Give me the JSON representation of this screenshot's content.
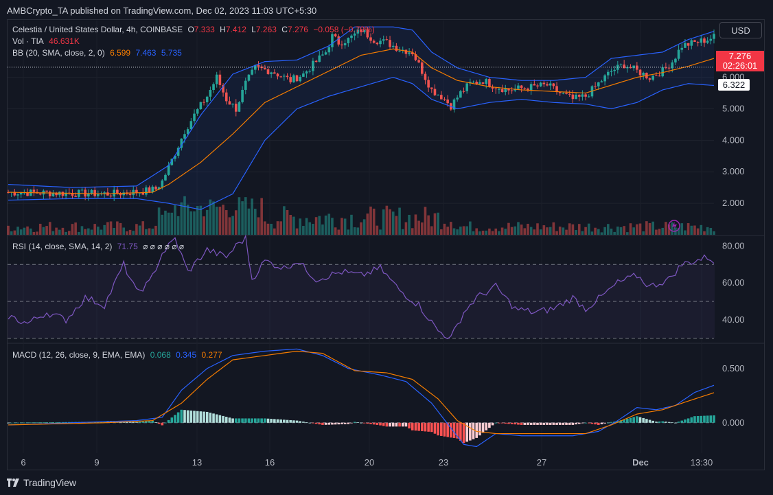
{
  "header": {
    "publisher": "AMBCrypto_TA published on TradingView.com, Dec 02, 2023 11:03 UTC+5:30"
  },
  "currency_button": "USD",
  "legend": {
    "symbol": "Celestia / United States Dollar, 4h, COINBASE",
    "o_label": "O",
    "o": "7.333",
    "h_label": "H",
    "h": "7.412",
    "l_label": "L",
    "l": "7.263",
    "c_label": "C",
    "c": "7.276",
    "change": "−0.058 (−0.79%)",
    "vol_label": "Vol · TIA",
    "vol": "46.631K",
    "bb_label": "BB (20, SMA, close, 2, 0)",
    "bb_basis": "6.599",
    "bb_upper": "7.463",
    "bb_lower": "5.735",
    "rsi_label": "RSI (14, close, SMA, 14, 2)",
    "rsi_value": "71.75",
    "rsi_na": "⌀ ⌀ ⌀ ⌀ ⌀ ⌀",
    "macd_label": "MACD (12, 26, close, 9, EMA, EMA)",
    "macd_hist": "0.068",
    "macd_line": "0.345",
    "macd_signal": "0.277"
  },
  "price_tags": {
    "last": "7.276",
    "countdown": "02:26:01",
    "crosshair": "6.322"
  },
  "footer": {
    "brand": "TradingView"
  },
  "colors": {
    "up": "#26a69a",
    "down": "#ef5350",
    "bb": "#2962ff",
    "basis": "#f57c00",
    "rsi": "#7e57c2"
  },
  "chart_data": [
    {
      "type": "candlestick",
      "title": "Celestia / United States Dollar, 4h, COINBASE",
      "x_ticks": [
        "6",
        "9",
        "13",
        "16",
        "20",
        "23",
        "27",
        "Dec",
        "13:30"
      ],
      "y_ticks": [
        "2.000",
        "3.000",
        "4.000",
        "5.000",
        "6.000"
      ],
      "ylim": [
        1.0,
        7.8
      ],
      "close_path": [
        [
          0,
          2.35
        ],
        [
          18,
          2.32
        ],
        [
          32,
          2.3
        ],
        [
          42,
          2.38
        ],
        [
          46,
          2.45
        ],
        [
          48,
          2.7
        ],
        [
          52,
          3.6
        ],
        [
          55,
          4.3
        ],
        [
          58,
          4.8
        ],
        [
          62,
          5.4
        ],
        [
          65,
          6.0
        ],
        [
          68,
          5.3
        ],
        [
          71,
          5.0
        ],
        [
          74,
          5.8
        ],
        [
          77,
          6.3
        ],
        [
          82,
          6.2
        ],
        [
          88,
          5.9
        ],
        [
          92,
          6.1
        ],
        [
          96,
          6.5
        ],
        [
          99,
          6.8
        ],
        [
          101,
          7.3
        ],
        [
          103,
          7.1
        ],
        [
          106,
          7.2
        ],
        [
          110,
          7.5
        ],
        [
          114,
          7.2
        ],
        [
          118,
          7.1
        ],
        [
          122,
          6.9
        ],
        [
          126,
          6.8
        ],
        [
          129,
          6.2
        ],
        [
          132,
          5.6
        ],
        [
          135,
          5.4
        ],
        [
          138,
          5.1
        ],
        [
          141,
          5.5
        ],
        [
          144,
          5.8
        ],
        [
          148,
          5.9
        ],
        [
          152,
          5.7
        ],
        [
          156,
          5.6
        ],
        [
          160,
          5.65
        ],
        [
          164,
          5.7
        ],
        [
          168,
          5.75
        ],
        [
          172,
          5.5
        ],
        [
          176,
          5.3
        ],
        [
          180,
          5.4
        ],
        [
          184,
          5.8
        ],
        [
          188,
          6.2
        ],
        [
          192,
          6.4
        ],
        [
          196,
          6.2
        ],
        [
          200,
          6.0
        ],
        [
          204,
          6.2
        ],
        [
          207,
          6.5
        ],
        [
          210,
          7.0
        ],
        [
          214,
          7.1
        ],
        [
          218,
          7.2
        ],
        [
          220,
          7.28
        ]
      ],
      "bollinger": {
        "basis": [
          [
            0,
            2.35
          ],
          [
            30,
            2.3
          ],
          [
            45,
            2.35
          ],
          [
            50,
            2.6
          ],
          [
            60,
            3.3
          ],
          [
            70,
            4.2
          ],
          [
            80,
            5.2
          ],
          [
            90,
            5.7
          ],
          [
            100,
            6.2
          ],
          [
            110,
            6.7
          ],
          [
            120,
            6.9
          ],
          [
            126,
            6.8
          ],
          [
            132,
            6.3
          ],
          [
            140,
            5.9
          ],
          [
            150,
            5.7
          ],
          [
            160,
            5.6
          ],
          [
            170,
            5.55
          ],
          [
            180,
            5.5
          ],
          [
            188,
            5.75
          ],
          [
            196,
            6.0
          ],
          [
            204,
            6.15
          ],
          [
            212,
            6.35
          ],
          [
            220,
            6.6
          ]
        ],
        "upper": [
          [
            0,
            2.6
          ],
          [
            20,
            2.5
          ],
          [
            40,
            2.55
          ],
          [
            50,
            3.2
          ],
          [
            60,
            4.8
          ],
          [
            70,
            6.1
          ],
          [
            80,
            6.5
          ],
          [
            90,
            6.55
          ],
          [
            100,
            7.0
          ],
          [
            108,
            7.6
          ],
          [
            120,
            7.6
          ],
          [
            126,
            7.5
          ],
          [
            132,
            6.8
          ],
          [
            140,
            6.3
          ],
          [
            150,
            6.0
          ],
          [
            160,
            5.9
          ],
          [
            170,
            5.9
          ],
          [
            180,
            6.0
          ],
          [
            188,
            6.6
          ],
          [
            196,
            6.7
          ],
          [
            204,
            6.8
          ],
          [
            212,
            7.2
          ],
          [
            220,
            7.46
          ]
        ],
        "lower": [
          [
            0,
            2.1
          ],
          [
            20,
            2.15
          ],
          [
            40,
            2.15
          ],
          [
            50,
            2.0
          ],
          [
            60,
            1.8
          ],
          [
            70,
            2.3
          ],
          [
            80,
            4.0
          ],
          [
            90,
            5.0
          ],
          [
            100,
            5.4
          ],
          [
            110,
            5.7
          ],
          [
            120,
            6.0
          ],
          [
            126,
            5.8
          ],
          [
            132,
            5.3
          ],
          [
            140,
            5.0
          ],
          [
            150,
            5.2
          ],
          [
            160,
            5.3
          ],
          [
            170,
            5.2
          ],
          [
            180,
            5.15
          ],
          [
            188,
            5.0
          ],
          [
            196,
            5.2
          ],
          [
            204,
            5.6
          ],
          [
            212,
            5.8
          ],
          [
            220,
            5.74
          ]
        ]
      }
    },
    {
      "type": "line",
      "title": "RSI (14, close, SMA, 14, 2)",
      "y_ticks": [
        "40.00",
        "60.00",
        "80.00"
      ],
      "ylim": [
        28,
        85
      ],
      "bands": [
        30,
        50,
        70
      ],
      "rsi": [
        [
          0,
          42
        ],
        [
          6,
          38
        ],
        [
          12,
          44
        ],
        [
          18,
          40
        ],
        [
          24,
          52
        ],
        [
          30,
          48
        ],
        [
          36,
          70
        ],
        [
          40,
          55
        ],
        [
          44,
          60
        ],
        [
          48,
          76
        ],
        [
          52,
          84
        ],
        [
          56,
          66
        ],
        [
          62,
          78
        ],
        [
          68,
          74
        ],
        [
          72,
          82
        ],
        [
          74,
          84
        ],
        [
          76,
          62
        ],
        [
          80,
          72
        ],
        [
          86,
          68
        ],
        [
          90,
          72
        ],
        [
          96,
          62
        ],
        [
          104,
          66
        ],
        [
          110,
          64
        ],
        [
          116,
          68
        ],
        [
          122,
          56
        ],
        [
          128,
          48
        ],
        [
          134,
          34
        ],
        [
          138,
          30
        ],
        [
          142,
          44
        ],
        [
          146,
          52
        ],
        [
          152,
          58
        ],
        [
          158,
          46
        ],
        [
          164,
          44
        ],
        [
          170,
          46
        ],
        [
          176,
          52
        ],
        [
          180,
          46
        ],
        [
          186,
          54
        ],
        [
          190,
          60
        ],
        [
          196,
          64
        ],
        [
          200,
          58
        ],
        [
          206,
          62
        ],
        [
          210,
          70
        ],
        [
          214,
          72
        ],
        [
          218,
          74
        ],
        [
          220,
          72
        ]
      ]
    },
    {
      "type": "line",
      "title": "MACD (12, 26, close, 9, EMA, EMA)",
      "y_ticks": [
        "0.000",
        "0.500"
      ],
      "ylim": [
        -0.28,
        0.72
      ],
      "macd": [
        [
          0,
          -0.02
        ],
        [
          20,
          0.0
        ],
        [
          40,
          0.02
        ],
        [
          48,
          0.05
        ],
        [
          54,
          0.3
        ],
        [
          62,
          0.5
        ],
        [
          70,
          0.62
        ],
        [
          80,
          0.66
        ],
        [
          90,
          0.68
        ],
        [
          98,
          0.62
        ],
        [
          106,
          0.5
        ],
        [
          116,
          0.44
        ],
        [
          124,
          0.38
        ],
        [
          132,
          0.18
        ],
        [
          138,
          -0.05
        ],
        [
          142,
          -0.2
        ],
        [
          146,
          -0.22
        ],
        [
          152,
          -0.1
        ],
        [
          160,
          -0.12
        ],
        [
          168,
          -0.12
        ],
        [
          176,
          -0.12
        ],
        [
          184,
          -0.08
        ],
        [
          190,
          0.02
        ],
        [
          196,
          0.14
        ],
        [
          202,
          0.12
        ],
        [
          208,
          0.16
        ],
        [
          214,
          0.28
        ],
        [
          220,
          0.345
        ]
      ],
      "signal": [
        [
          0,
          -0.02
        ],
        [
          30,
          0.0
        ],
        [
          45,
          0.02
        ],
        [
          54,
          0.18
        ],
        [
          62,
          0.4
        ],
        [
          70,
          0.58
        ],
        [
          80,
          0.62
        ],
        [
          90,
          0.66
        ],
        [
          98,
          0.64
        ],
        [
          108,
          0.48
        ],
        [
          118,
          0.46
        ],
        [
          126,
          0.4
        ],
        [
          134,
          0.22
        ],
        [
          140,
          0.02
        ],
        [
          146,
          -0.08
        ],
        [
          152,
          -0.1
        ],
        [
          160,
          -0.1
        ],
        [
          170,
          -0.1
        ],
        [
          180,
          -0.1
        ],
        [
          188,
          -0.02
        ],
        [
          196,
          0.08
        ],
        [
          204,
          0.12
        ],
        [
          212,
          0.2
        ],
        [
          220,
          0.277
        ]
      ]
    }
  ]
}
